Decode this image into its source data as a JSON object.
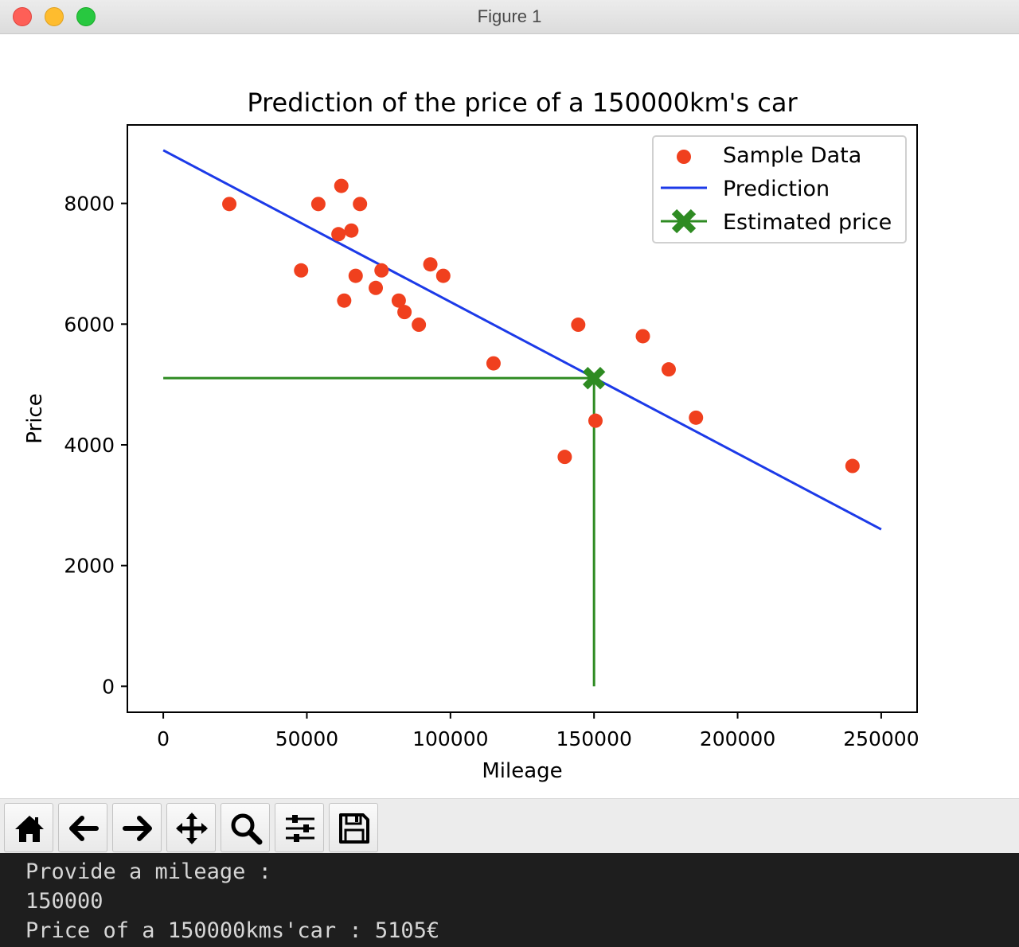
{
  "window": {
    "title": "Figure 1"
  },
  "chart_data": {
    "type": "scatter",
    "title": "Prediction of the price of a 150000km's car",
    "xlabel": "Mileage",
    "ylabel": "Price",
    "xlim": [
      -12500,
      262500
    ],
    "ylim": [
      -430,
      9300
    ],
    "xticks": [
      0,
      50000,
      100000,
      150000,
      200000,
      250000
    ],
    "xtick_labels": [
      "0",
      "50000",
      "100000",
      "150000",
      "200000",
      "250000"
    ],
    "yticks": [
      0,
      2000,
      4000,
      6000,
      8000
    ],
    "ytick_labels": [
      "0",
      "2000",
      "4000",
      "6000",
      "8000"
    ],
    "grid": false,
    "legend_position": "upper right",
    "series": [
      {
        "name": "Sample Data",
        "kind": "scatter",
        "color": "#f0401e",
        "points": [
          [
            23000,
            7990
          ],
          [
            62000,
            8290
          ],
          [
            54000,
            7990
          ],
          [
            68500,
            7990
          ],
          [
            61000,
            7490
          ],
          [
            65500,
            7550
          ],
          [
            48000,
            6890
          ],
          [
            76000,
            6890
          ],
          [
            67000,
            6800
          ],
          [
            63000,
            6390
          ],
          [
            74000,
            6600
          ],
          [
            82000,
            6390
          ],
          [
            84000,
            6200
          ],
          [
            89000,
            5990
          ],
          [
            93000,
            6990
          ],
          [
            97500,
            6800
          ],
          [
            115000,
            5350
          ],
          [
            144500,
            5990
          ],
          [
            167000,
            5800
          ],
          [
            176000,
            5250
          ],
          [
            185500,
            4450
          ],
          [
            150500,
            4400
          ],
          [
            139800,
            3800
          ],
          [
            240000,
            3650
          ]
        ]
      },
      {
        "name": "Prediction",
        "kind": "line",
        "color": "#1c3ae8",
        "x": [
          0,
          250000
        ],
        "y": [
          8880,
          2600
        ]
      },
      {
        "name": "Estimated price",
        "kind": "marker-with-guides",
        "color": "#2e8b22",
        "x": 150000,
        "y": 5105,
        "guide_h": {
          "x": [
            0,
            150000
          ],
          "y": [
            5105,
            5105
          ]
        },
        "guide_v": {
          "x": [
            150000,
            150000
          ],
          "y": [
            0,
            5105
          ]
        }
      }
    ]
  },
  "toolbar": {
    "buttons": [
      {
        "name": "home-button",
        "icon": "home-icon"
      },
      {
        "name": "back-button",
        "icon": "arrow-left-icon"
      },
      {
        "name": "forward-button",
        "icon": "arrow-right-icon"
      },
      {
        "name": "pan-button",
        "icon": "move-icon"
      },
      {
        "name": "zoom-button",
        "icon": "magnifier-icon"
      },
      {
        "name": "configure-subplots-button",
        "icon": "sliders-icon"
      },
      {
        "name": "save-button",
        "icon": "floppy-disk-icon"
      }
    ]
  },
  "terminal": {
    "lines": [
      "Provide a mileage :",
      "150000",
      "Price of a 150000kms'car : 5105€"
    ]
  }
}
